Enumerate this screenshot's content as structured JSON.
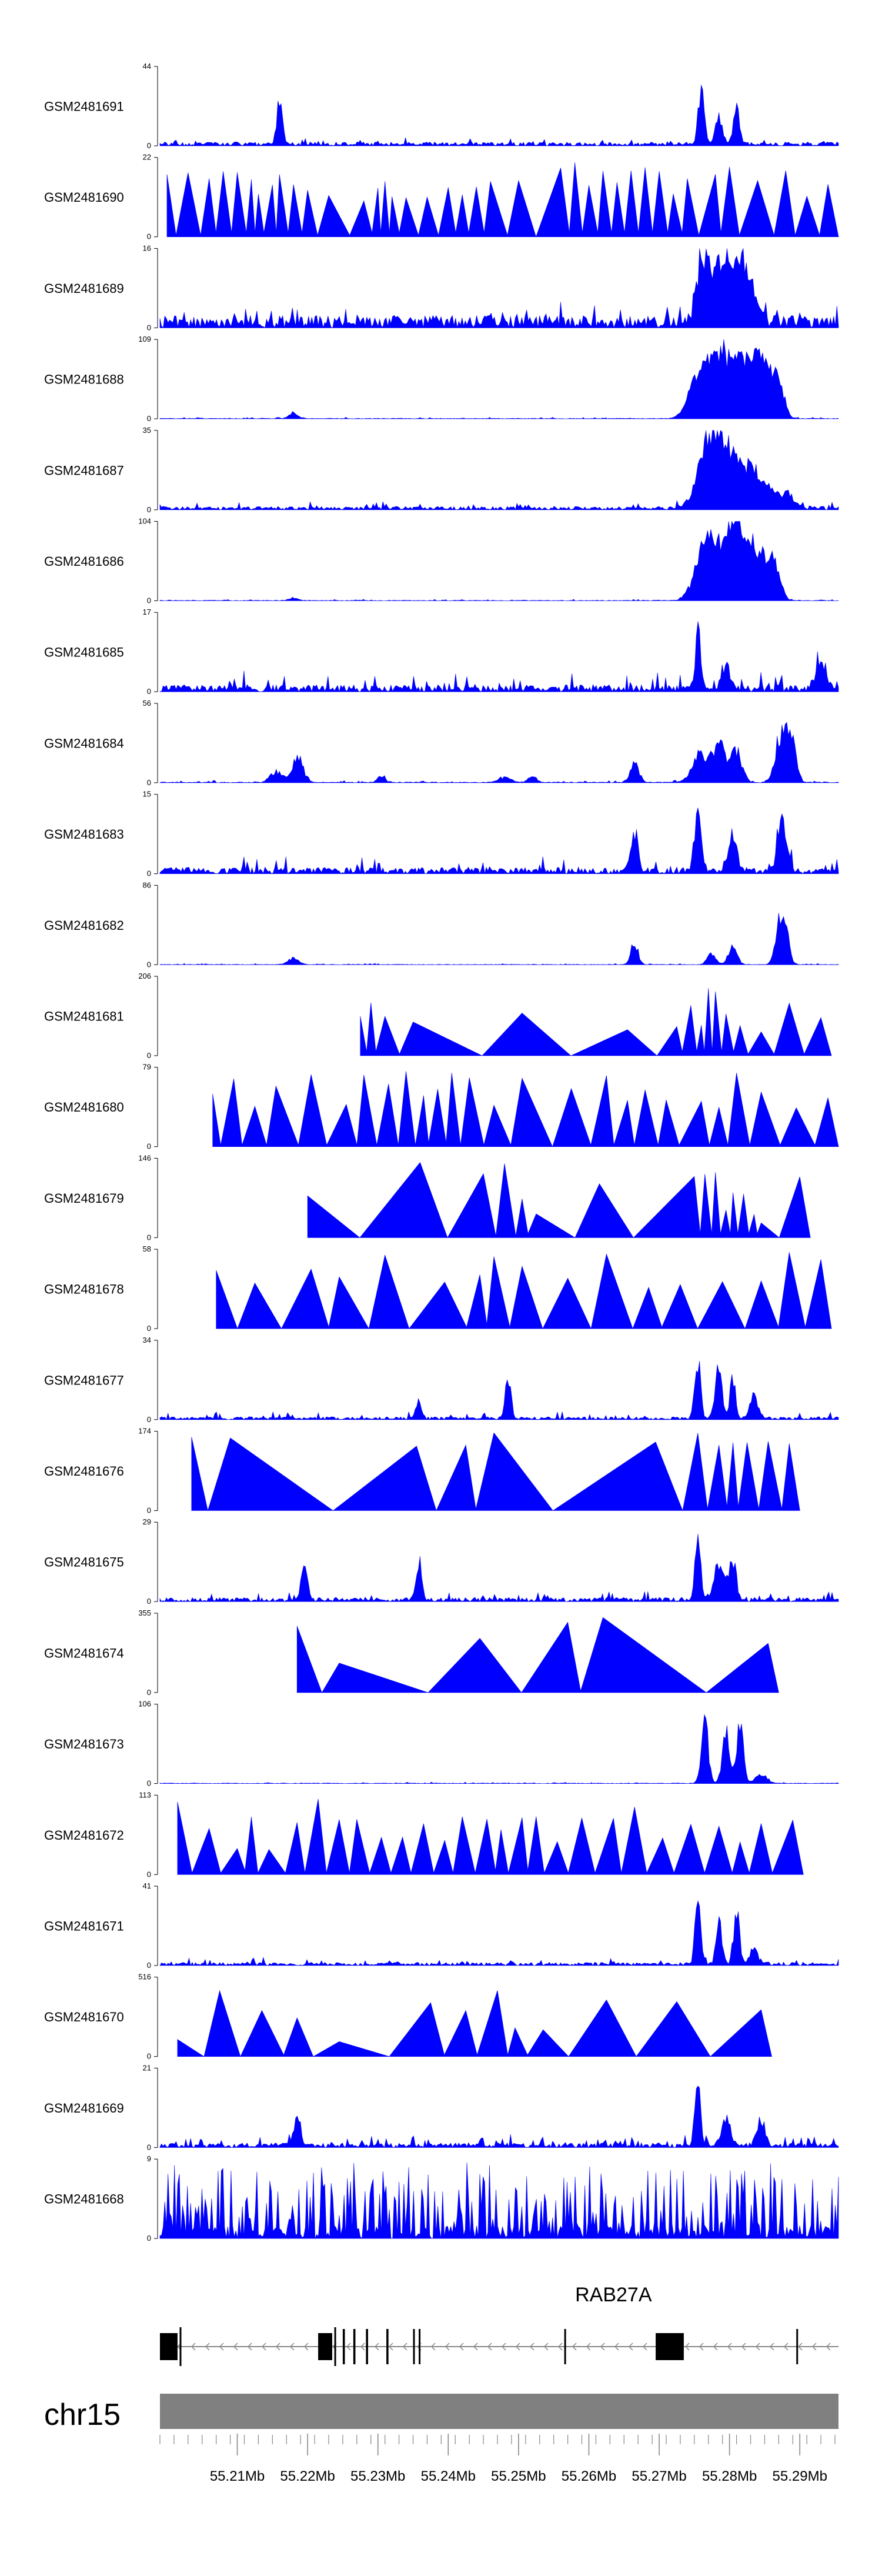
{
  "chart_data": {
    "type": "area",
    "title": "",
    "color": "#0000ff",
    "x_range_mb": [
      55.199,
      55.2955
    ],
    "tracks": [
      {
        "name": "GSM2481691",
        "ymax": 44,
        "style": "dense",
        "baseline": 2.2,
        "noise": 2.6,
        "bumps": [
          [
            55.216,
            30,
            0.0004
          ],
          [
            55.276,
            42,
            0.0004
          ],
          [
            55.2785,
            18,
            0.0005
          ],
          [
            55.281,
            26,
            0.0004
          ]
        ]
      },
      {
        "name": "GSM2481690",
        "ymax": 22,
        "style": "sparse",
        "spikes": [
          55.2,
          55.203,
          55.206,
          55.208,
          55.21,
          55.212,
          55.213,
          55.215,
          55.216,
          55.218,
          55.22,
          55.223,
          55.228,
          55.23,
          55.231,
          55.232,
          55.234,
          55.237,
          55.24,
          55.242,
          55.244,
          55.246,
          55.25,
          55.256,
          55.258,
          55.26,
          55.262,
          55.264,
          55.266,
          55.268,
          55.27,
          55.272,
          55.274,
          55.278,
          55.28,
          55.284,
          55.288,
          55.291,
          55.294
        ],
        "hmin": 9,
        "hmax": 21
      },
      {
        "name": "GSM2481689",
        "ymax": 16,
        "style": "dense",
        "baseline": 2.5,
        "noise": 3.2,
        "bumps": [
          [
            55.276,
            14,
            0.0008
          ],
          [
            55.278,
            11,
            0.0012
          ],
          [
            55.2805,
            13,
            0.0015
          ],
          [
            55.2825,
            9,
            0.0012
          ]
        ]
      },
      {
        "name": "GSM2481688",
        "ymax": 109,
        "style": "dense",
        "baseline": 0.8,
        "noise": 1.5,
        "bumps": [
          [
            55.218,
            10,
            0.0006
          ],
          [
            55.275,
            45,
            0.0012
          ],
          [
            55.277,
            70,
            0.0012
          ],
          [
            55.279,
            80,
            0.0012
          ],
          [
            55.2815,
            95,
            0.0014
          ],
          [
            55.284,
            70,
            0.0012
          ],
          [
            55.2855,
            55,
            0.0012
          ],
          [
            55.287,
            45,
            0.0008
          ]
        ]
      },
      {
        "name": "GSM2481687",
        "ymax": 35,
        "style": "dense",
        "baseline": 1.5,
        "noise": 2.5,
        "bumps": [
          [
            55.276,
            22,
            0.0012
          ],
          [
            55.278,
            30,
            0.0012
          ],
          [
            55.28,
            24,
            0.0014
          ],
          [
            55.2825,
            18,
            0.0014
          ],
          [
            55.285,
            12,
            0.0012
          ],
          [
            55.288,
            8,
            0.0012
          ]
        ]
      },
      {
        "name": "GSM2481686",
        "ymax": 104,
        "style": "dense",
        "baseline": 0.8,
        "noise": 1.5,
        "bumps": [
          [
            55.218,
            5,
            0.0006
          ],
          [
            55.276,
            70,
            0.0012
          ],
          [
            55.278,
            80,
            0.0012
          ],
          [
            55.2805,
            88,
            0.0012
          ],
          [
            55.282,
            75,
            0.0014
          ],
          [
            55.2845,
            65,
            0.0012
          ],
          [
            55.2865,
            50,
            0.0008
          ]
        ]
      },
      {
        "name": "GSM2481685",
        "ymax": 17,
        "style": "dense",
        "baseline": 1.5,
        "noise": 3.3,
        "bumps": [
          [
            55.2755,
            16,
            0.0004
          ],
          [
            55.2795,
            6,
            0.0006
          ],
          [
            55.293,
            6,
            0.0008
          ]
        ]
      },
      {
        "name": "GSM2481684",
        "ymax": 56,
        "style": "dense",
        "baseline": 0.6,
        "noise": 1.4,
        "bumps": [
          [
            55.2155,
            10,
            0.0008
          ],
          [
            55.2185,
            22,
            0.0008
          ],
          [
            55.2305,
            6,
            0.0005
          ],
          [
            55.248,
            5,
            0.0008
          ],
          [
            55.252,
            5,
            0.0006
          ],
          [
            55.2665,
            18,
            0.0006
          ],
          [
            55.276,
            25,
            0.0012
          ],
          [
            55.2785,
            35,
            0.0008
          ],
          [
            55.281,
            28,
            0.0008
          ],
          [
            55.2875,
            50,
            0.0008
          ],
          [
            55.289,
            30,
            0.0006
          ]
        ]
      },
      {
        "name": "GSM2481683",
        "ymax": 15,
        "style": "dense",
        "baseline": 1.2,
        "noise": 2.7,
        "bumps": [
          [
            55.2665,
            9,
            0.0005
          ],
          [
            55.2755,
            12,
            0.0005
          ],
          [
            55.2805,
            8,
            0.0006
          ],
          [
            55.2875,
            14,
            0.0006
          ]
        ]
      },
      {
        "name": "GSM2481682",
        "ymax": 86,
        "style": "dense",
        "baseline": 0.5,
        "noise": 1.2,
        "bumps": [
          [
            55.218,
            8,
            0.0008
          ],
          [
            55.2665,
            30,
            0.0005
          ],
          [
            55.2775,
            15,
            0.0006
          ],
          [
            55.2805,
            25,
            0.0006
          ],
          [
            55.2875,
            80,
            0.0007
          ]
        ]
      },
      {
        "name": "GSM2481681",
        "ymax": 206,
        "style": "sparse",
        "spikes": [
          55.2275,
          55.229,
          55.231,
          55.235,
          55.2505,
          55.2655,
          55.2725,
          55.2745,
          55.276,
          55.277,
          55.278,
          55.2795,
          55.2815,
          55.2845,
          55.2885,
          55.293
        ],
        "hmin": 60,
        "hmax": 195
      },
      {
        "name": "GSM2481680",
        "ymax": 79,
        "style": "sparse",
        "spikes": [
          55.2065,
          55.2095,
          55.2125,
          55.2155,
          55.2205,
          55.2255,
          55.228,
          55.2315,
          55.234,
          55.2365,
          55.2385,
          55.2405,
          55.243,
          55.2465,
          55.2505,
          55.2575,
          55.2625,
          55.2655,
          55.268,
          55.271,
          55.276,
          55.2785,
          55.281,
          55.2845,
          55.2895,
          55.294
        ],
        "hmin": 38,
        "hmax": 76
      },
      {
        "name": "GSM2481679",
        "ymax": 146,
        "style": "sparse",
        "spikes": [
          55.22,
          55.236,
          55.245,
          55.248,
          55.2505,
          55.2525,
          55.2615,
          55.275,
          55.2765,
          55.278,
          55.2795,
          55.2805,
          55.282,
          55.2835,
          55.2845,
          55.29
        ],
        "hmin": 25,
        "hmax": 140
      },
      {
        "name": "GSM2481678",
        "ymax": 58,
        "style": "sparse",
        "spikes": [
          55.207,
          55.2125,
          55.2205,
          55.2245,
          55.231,
          55.2395,
          55.2445,
          55.2465,
          55.2505,
          55.257,
          55.2625,
          55.2685,
          55.273,
          55.279,
          55.2845,
          55.2885,
          55.293
        ],
        "hmin": 28,
        "hmax": 56
      },
      {
        "name": "GSM2481677",
        "ymax": 34,
        "style": "dense",
        "baseline": 1.2,
        "noise": 2.6,
        "bumps": [
          [
            55.2358,
            10,
            0.0004
          ],
          [
            55.2485,
            20,
            0.0004
          ],
          [
            55.2755,
            33,
            0.0004
          ],
          [
            55.2785,
            25,
            0.0005
          ],
          [
            55.2805,
            22,
            0.0004
          ],
          [
            55.2835,
            12,
            0.0006
          ]
        ]
      },
      {
        "name": "GSM2481676",
        "ymax": 174,
        "style": "sparse",
        "spikes": [
          55.2035,
          55.209,
          55.2355,
          55.2425,
          55.2465,
          55.2695,
          55.2755,
          55.2785,
          55.2805,
          55.2825,
          55.2855,
          55.2885
        ],
        "hmin": 140,
        "hmax": 172
      },
      {
        "name": "GSM2481675",
        "ymax": 29,
        "style": "dense",
        "baseline": 1.5,
        "noise": 2.6,
        "bumps": [
          [
            55.2195,
            20,
            0.0004
          ],
          [
            55.2358,
            18,
            0.0004
          ],
          [
            55.2755,
            28,
            0.0004
          ],
          [
            55.2785,
            14,
            0.0008
          ],
          [
            55.2805,
            18,
            0.0005
          ]
        ]
      },
      {
        "name": "GSM2481674",
        "ymax": 355,
        "style": "sparse",
        "spikes": [
          55.2185,
          55.2245,
          55.2445,
          55.257,
          55.262,
          55.2855
        ],
        "hmin": 130,
        "hmax": 340
      },
      {
        "name": "GSM2481673",
        "ymax": 106,
        "style": "dense",
        "baseline": 0.8,
        "noise": 1.3,
        "bumps": [
          [
            55.2765,
            100,
            0.0005
          ],
          [
            55.2795,
            95,
            0.0005
          ],
          [
            55.2815,
            90,
            0.0005
          ],
          [
            55.2845,
            15,
            0.0008
          ]
        ]
      },
      {
        "name": "GSM2481672",
        "ymax": 113,
        "style": "sparse",
        "spikes": [
          55.2015,
          55.206,
          55.21,
          55.212,
          55.2145,
          55.2185,
          55.2215,
          55.2245,
          55.227,
          55.2305,
          55.2335,
          55.2365,
          55.2395,
          55.242,
          55.2455,
          55.2475,
          55.2505,
          55.2525,
          55.2555,
          55.259,
          55.2635,
          55.2665,
          55.2705,
          55.2745,
          55.2785,
          55.2815,
          55.2845,
          55.289
        ],
        "hmin": 35,
        "hmax": 108
      },
      {
        "name": "GSM2481671",
        "ymax": 41,
        "style": "dense",
        "baseline": 1.6,
        "noise": 2.6,
        "bumps": [
          [
            55.2755,
            40,
            0.0004
          ],
          [
            55.2785,
            34,
            0.0004
          ],
          [
            55.281,
            38,
            0.0004
          ],
          [
            55.2835,
            10,
            0.0006
          ]
        ]
      },
      {
        "name": "GSM2481670",
        "ymax": 516,
        "style": "sparse",
        "spikes": [
          55.2015,
          55.2075,
          55.2135,
          55.2185,
          55.2245,
          55.2375,
          55.2425,
          55.247,
          55.2495,
          55.2535,
          55.2625,
          55.2725,
          55.2845
        ],
        "hmin": 80,
        "hmax": 500
      },
      {
        "name": "GSM2481669",
        "ymax": 21,
        "style": "dense",
        "baseline": 1.2,
        "noise": 2.5,
        "bumps": [
          [
            55.2185,
            10,
            0.0005
          ],
          [
            55.2755,
            20,
            0.0004
          ],
          [
            55.2795,
            9,
            0.0006
          ],
          [
            55.2845,
            8,
            0.0006
          ]
        ]
      },
      {
        "name": "GSM2481668",
        "ymax": 9,
        "style": "stripes",
        "baseline": 1.5,
        "noise": 7.5
      }
    ],
    "gene": {
      "name": "RAB27A",
      "strand": "-",
      "start": 55.199,
      "end": 55.2955,
      "exons": [
        [
          55.199,
          55.2015
        ],
        [
          55.2215,
          55.2235
        ],
        [
          55.225,
          55.2253
        ],
        [
          55.2265,
          55.2268
        ],
        [
          55.2283,
          55.2286
        ],
        [
          55.2312,
          55.2315
        ],
        [
          55.235,
          55.2352
        ],
        [
          55.2358,
          55.236
        ],
        [
          55.2565,
          55.2567
        ],
        [
          55.2695,
          55.2735
        ],
        [
          55.2895,
          55.2897
        ]
      ]
    },
    "chromosome": {
      "name": "chr15",
      "axis_ticks_mb": [
        55.21,
        55.22,
        55.23,
        55.24,
        55.25,
        55.26,
        55.27,
        55.28,
        55.29
      ],
      "tick_labels": [
        "55.21Mb",
        "55.22Mb",
        "55.23Mb",
        "55.24Mb",
        "55.25Mb",
        "55.26Mb",
        "55.27Mb",
        "55.28Mb",
        "55.29Mb"
      ]
    }
  }
}
